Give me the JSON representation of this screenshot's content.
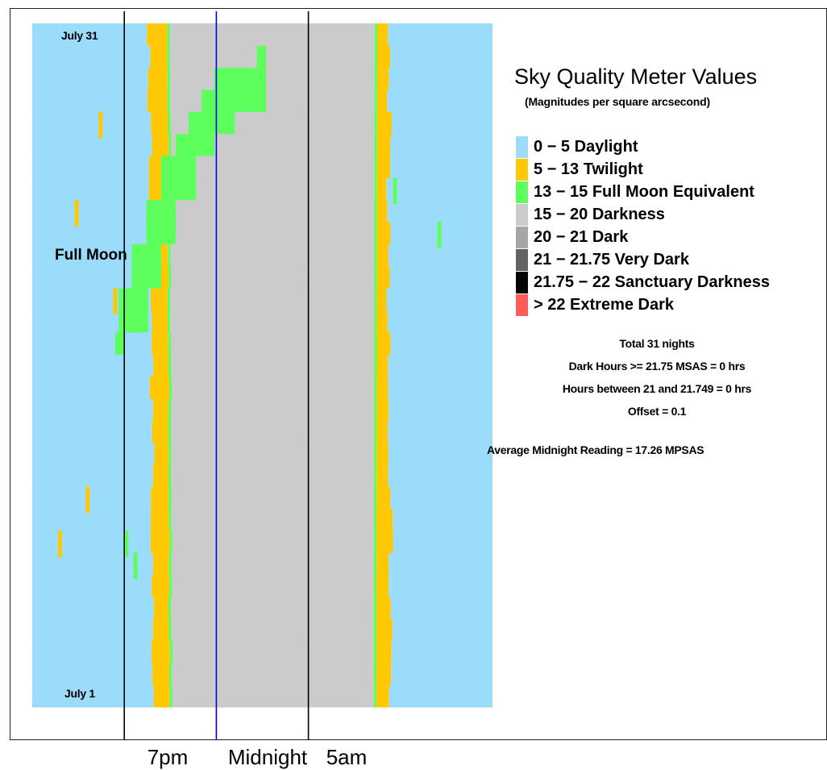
{
  "chart_data": {
    "type": "heatmap",
    "title": "Sky Quality Meter Values",
    "subtitle": "(Magnitudes per square arcsecond)",
    "legend_position": "right",
    "legend": [
      {
        "label": "0 − 5 Daylight",
        "color": "#9bdcfb"
      },
      {
        "label": "5 − 13 Twilight",
        "color": "#ffc805"
      },
      {
        "label": "13 − 15 Full Moon Equivalent",
        "color": "#5dff5d"
      },
      {
        "label": "15 − 20 Darkness",
        "color": "#cbcbcb"
      },
      {
        "label": "20 − 21 Dark",
        "color": "#a6a6a6"
      },
      {
        "label": "21 − 21.75 Very Dark",
        "color": "#636363"
      },
      {
        "label": "21.75 − 22 Sanctuary Darkness",
        "color": "#050505"
      },
      {
        "label": "> 22 Extreme Dark",
        "color": "#ff5b5b"
      }
    ],
    "x_ticks": [
      {
        "label": "7pm",
        "hour": 19
      },
      {
        "label": "Midnight",
        "hour": 24
      },
      {
        "label": "5am",
        "hour": 29
      }
    ],
    "y_labels": {
      "bottom": "July 1",
      "top": "July 31"
    },
    "nights": 31,
    "x_range_hours": [
      14,
      39
    ],
    "annotation": "Full Moon",
    "stats": [
      "Total 31 nights",
      "Dark Hours >= 21.75 MSAS = 0 hrs",
      "Hours between 21 and 21.749 = 0 hrs",
      "Offset = 0.1"
    ],
    "average_midnight": "Average Midnight Reading = 17.26 MPSAS",
    "moon_green_hours": [
      [
        null,
        null
      ],
      [
        null,
        null
      ],
      [
        null,
        null
      ],
      [
        null,
        null
      ],
      [
        null,
        null
      ],
      [
        null,
        null
      ],
      [
        null,
        null
      ],
      [
        null,
        null
      ],
      [
        null,
        null
      ],
      [
        null,
        null
      ],
      [
        null,
        null
      ],
      [
        null,
        null
      ],
      [
        null,
        null
      ],
      [
        null,
        null
      ],
      [
        null,
        null
      ],
      [
        null,
        null
      ],
      [
        18.5,
        19.0
      ],
      [
        18.7,
        20.3
      ],
      [
        18.7,
        20.3
      ],
      [
        19.4,
        21.0
      ],
      [
        19.4,
        21.0
      ],
      [
        20.2,
        21.8
      ],
      [
        20.2,
        21.8
      ],
      [
        21.0,
        22.9
      ],
      [
        21.0,
        22.9
      ],
      [
        21.8,
        23.9
      ],
      [
        22.5,
        25.0
      ],
      [
        23.2,
        26.7
      ],
      [
        23.9,
        26.7
      ],
      [
        26.2,
        26.7
      ],
      [
        null,
        null
      ]
    ]
  }
}
